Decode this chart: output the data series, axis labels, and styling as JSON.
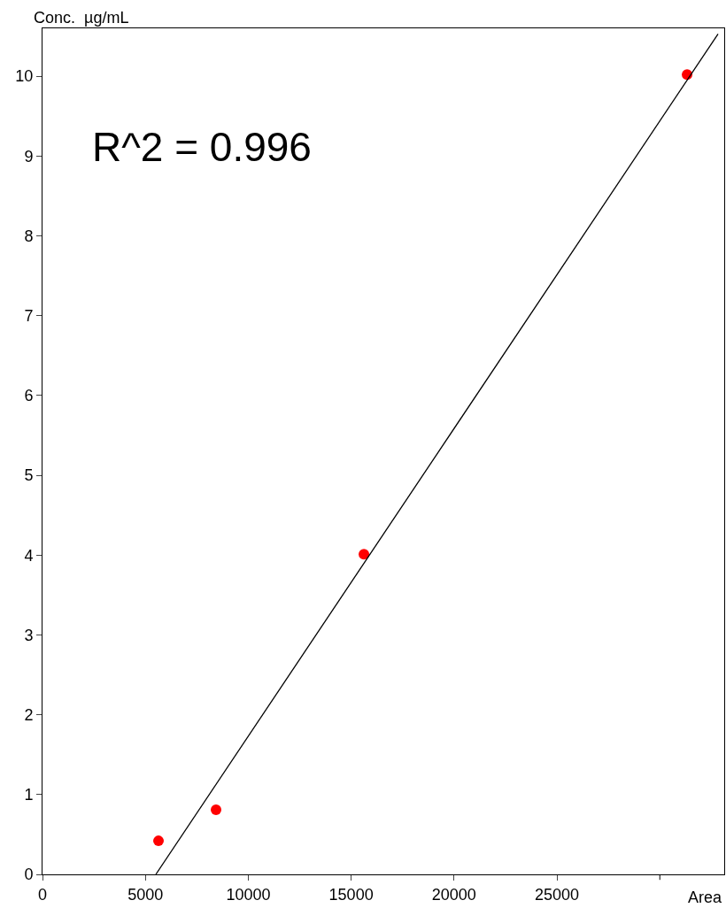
{
  "chart_data": {
    "type": "scatter",
    "xlabel": "Area",
    "ylabel": "Conc.  µg/mL",
    "annotations": [
      "R^2 = 0.996"
    ],
    "x": [
      5637,
      8434,
      15620,
      31325
    ],
    "series": [
      {
        "color": "#ff0000",
        "values": [
          0.42,
          0.81,
          4.01,
          10.02
        ],
        "marker": "circle"
      },
      {
        "type": "line",
        "color": "#000000",
        "x": [
          5508,
          32830
        ],
        "values": [
          0,
          10.53
        ],
        "marker": "none",
        "line_style": "solid"
      }
    ],
    "xlim": [
      0,
      33130
    ],
    "ylim": [
      0,
      10.6
    ],
    "xticks": [
      0,
      5000,
      10000,
      15000,
      20000,
      25000,
      {
        "value": 30000,
        "label": null
      }
    ],
    "yticks": [
      0,
      1,
      2,
      3,
      4,
      5,
      6,
      7,
      8,
      9,
      10
    ],
    "grid": false
  }
}
